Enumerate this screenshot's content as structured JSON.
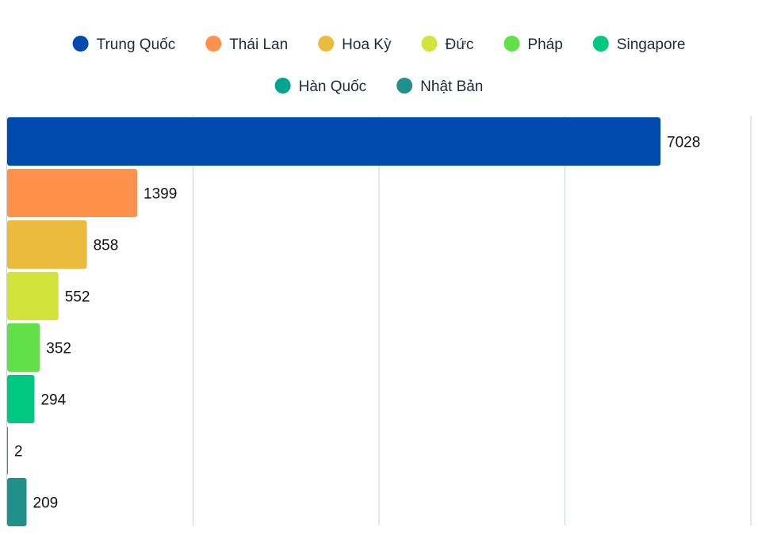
{
  "chart_data": {
    "type": "bar",
    "orientation": "horizontal",
    "categories": [
      "Trung Quốc",
      "Thái Lan",
      "Hoa Kỳ",
      "Đức",
      "Pháp",
      "Singapore",
      "Hàn Quốc",
      "Nhật Bản"
    ],
    "values": [
      7028,
      1399,
      858,
      552,
      352,
      294,
      2,
      209
    ],
    "colors": [
      "#004aad",
      "#ff914d",
      "#eabb3c",
      "#d2e33a",
      "#62e04a",
      "#00c781",
      "#00a78c",
      "#22908a"
    ],
    "xlim": [
      0,
      8000
    ],
    "grid": true,
    "legend_position": "top"
  }
}
